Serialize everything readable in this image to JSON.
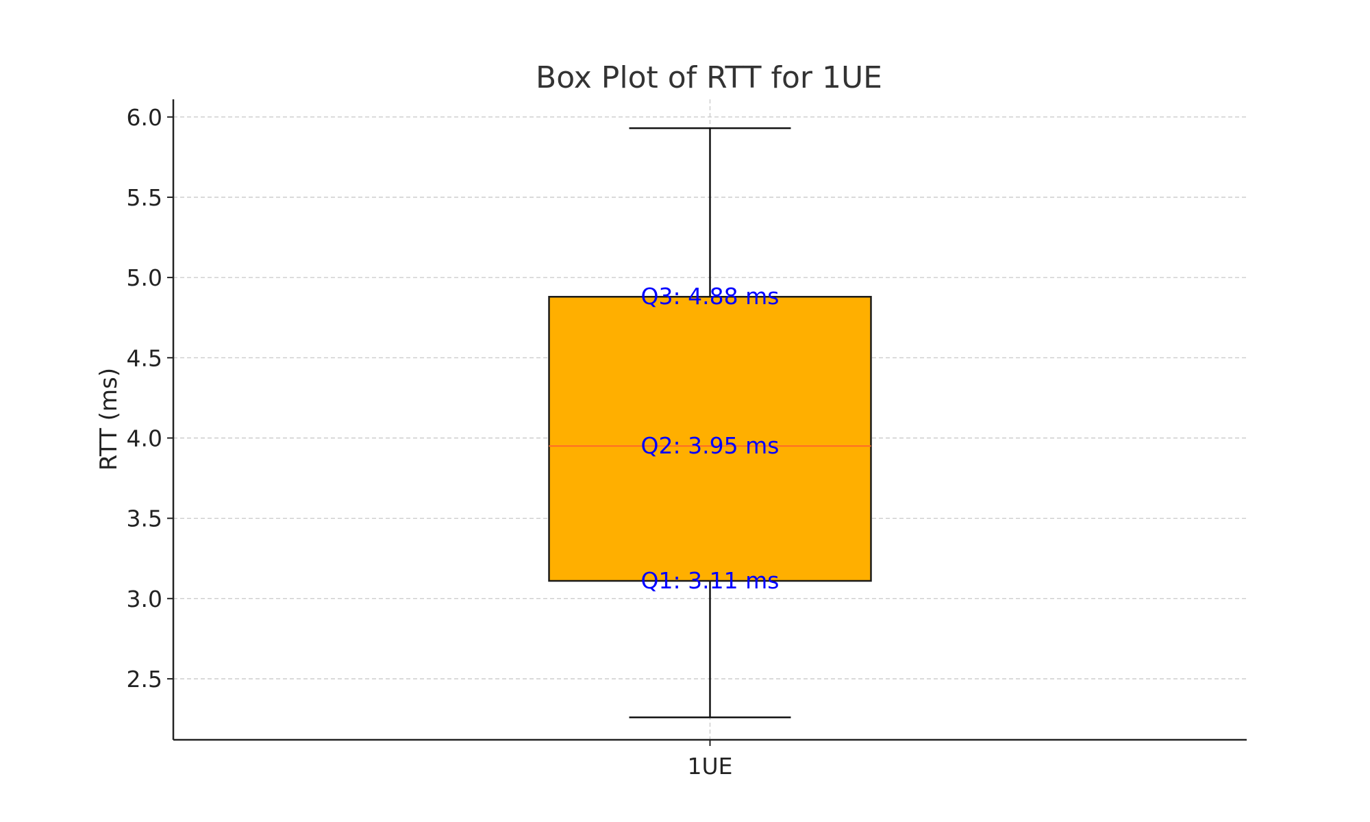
{
  "chart_data": {
    "type": "box",
    "title": "Box Plot of RTT for 1UE",
    "xlabel": "",
    "ylabel": "RTT (ms)",
    "ylim": [
      2.12,
      6.11
    ],
    "yticks": [
      "2.5",
      "3.0",
      "3.5",
      "4.0",
      "4.5",
      "5.0",
      "5.5",
      "6.0"
    ],
    "categories": [
      "1UE"
    ],
    "grid": true,
    "boxes": [
      {
        "category": "1UE",
        "whisker_low": 2.26,
        "q1": 3.11,
        "median": 3.95,
        "q3": 4.88,
        "whisker_high": 5.93
      }
    ],
    "annotations": [
      {
        "text": "Q1: 3.11 ms",
        "value": 3.11
      },
      {
        "text": "Q2: 3.95 ms",
        "value": 3.95
      },
      {
        "text": "Q3: 4.88 ms",
        "value": 4.88
      }
    ]
  },
  "colors": {
    "box_fill": "#ffaf00",
    "median": "#ff6a2a",
    "annotation": "#0000ff",
    "grid": "#c8c8c8",
    "axis": "#222222"
  }
}
